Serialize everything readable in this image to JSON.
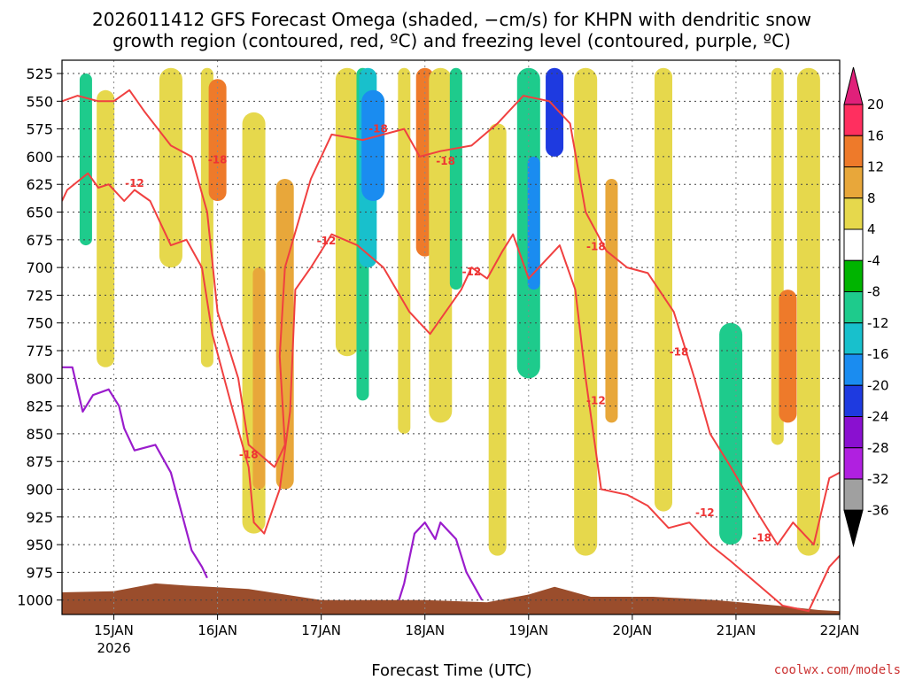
{
  "chart_data": {
    "type": "heatmap",
    "title_line1": "2026011412 GFS Forecast Omega (shaded, −cm/s) for KHPN with dendritic snow",
    "title_line2": "growth region (contoured, red, ºC) and freezing level (contoured, purple, ºC)",
    "xlabel": "Forecast Time (UTC)",
    "ylabel": "",
    "credit": "coolwx.com/models",
    "x_ticks": [
      {
        "day": 15,
        "label": "15JAN",
        "sub": "2026"
      },
      {
        "day": 16,
        "label": "16JAN",
        "sub": ""
      },
      {
        "day": 17,
        "label": "17JAN",
        "sub": ""
      },
      {
        "day": 18,
        "label": "18JAN",
        "sub": ""
      },
      {
        "day": 19,
        "label": "19JAN",
        "sub": ""
      },
      {
        "day": 20,
        "label": "20JAN",
        "sub": ""
      },
      {
        "day": 21,
        "label": "21JAN",
        "sub": ""
      },
      {
        "day": 22,
        "label": "22JAN",
        "sub": ""
      }
    ],
    "xlim": [
      14.5,
      22.0
    ],
    "y_ticks": [
      525,
      550,
      575,
      600,
      625,
      650,
      675,
      700,
      725,
      750,
      775,
      800,
      825,
      850,
      875,
      900,
      925,
      950,
      975,
      1000
    ],
    "ylim": [
      513,
      1013
    ],
    "colorbar": {
      "labels": [
        "20",
        "16",
        "12",
        "8",
        "4",
        "-4",
        "-8",
        "-12",
        "-16",
        "-20",
        "-24",
        "-28",
        "-32",
        "-36"
      ],
      "colors": [
        "#ff2f5f",
        "#ee7a2a",
        "#e8a73a",
        "#e6d84c",
        "#ffffff",
        "#00b400",
        "#1ecb8c",
        "#18c0cc",
        "#1a8cf0",
        "#1e3ae0",
        "#8a10d0",
        "#b020e0",
        "#a0a0a0"
      ],
      "top_arrow": "#e0207a",
      "bottom_arrow": "#000000"
    },
    "omega_blobs": [
      {
        "x": 14.73,
        "p0": 525,
        "p1": 680,
        "v": -8
      },
      {
        "x": 14.92,
        "p0": 540,
        "p1": 790,
        "v": 4
      },
      {
        "x": 15.55,
        "p0": 520,
        "p1": 700,
        "v": 4
      },
      {
        "x": 15.9,
        "p0": 520,
        "p1": 790,
        "v": 4
      },
      {
        "x": 16.0,
        "p0": 530,
        "p1": 640,
        "v": 12
      },
      {
        "x": 16.35,
        "p0": 560,
        "p1": 940,
        "v": 4
      },
      {
        "x": 16.4,
        "p0": 700,
        "p1": 900,
        "v": 8
      },
      {
        "x": 16.65,
        "p0": 620,
        "p1": 900,
        "v": 8
      },
      {
        "x": 17.25,
        "p0": 520,
        "p1": 780,
        "v": 4
      },
      {
        "x": 17.4,
        "p0": 520,
        "p1": 820,
        "v": -8
      },
      {
        "x": 17.45,
        "p0": 520,
        "p1": 700,
        "v": -12
      },
      {
        "x": 17.5,
        "p0": 540,
        "p1": 640,
        "v": -16
      },
      {
        "x": 17.8,
        "p0": 520,
        "p1": 850,
        "v": 4
      },
      {
        "x": 18.0,
        "p0": 520,
        "p1": 690,
        "v": 12
      },
      {
        "x": 18.15,
        "p0": 520,
        "p1": 840,
        "v": 4
      },
      {
        "x": 18.3,
        "p0": 520,
        "p1": 720,
        "v": -8
      },
      {
        "x": 18.7,
        "p0": 570,
        "p1": 960,
        "v": 4
      },
      {
        "x": 19.0,
        "p0": 520,
        "p1": 800,
        "v": -8
      },
      {
        "x": 19.05,
        "p0": 600,
        "p1": 720,
        "v": -16
      },
      {
        "x": 19.25,
        "p0": 520,
        "p1": 600,
        "v": -20
      },
      {
        "x": 19.55,
        "p0": 520,
        "p1": 960,
        "v": 4
      },
      {
        "x": 19.8,
        "p0": 620,
        "p1": 840,
        "v": 8
      },
      {
        "x": 20.3,
        "p0": 520,
        "p1": 920,
        "v": 4
      },
      {
        "x": 20.95,
        "p0": 750,
        "p1": 950,
        "v": -8
      },
      {
        "x": 21.4,
        "p0": 520,
        "p1": 860,
        "v": 4
      },
      {
        "x": 21.5,
        "p0": 720,
        "p1": 840,
        "v": 12
      },
      {
        "x": 21.7,
        "p0": 520,
        "p1": 960,
        "v": 4
      }
    ],
    "contour_minus12": [
      {
        "x": 14.5,
        "p": 640
      },
      {
        "x": 14.55,
        "p": 630
      },
      {
        "x": 14.75,
        "p": 615
      },
      {
        "x": 14.85,
        "p": 628
      },
      {
        "x": 14.95,
        "p": 625
      },
      {
        "x": 15.1,
        "p": 640
      },
      {
        "x": 15.2,
        "p": 630
      },
      {
        "x": 15.35,
        "p": 640
      },
      {
        "x": 15.55,
        "p": 680
      },
      {
        "x": 15.7,
        "p": 675
      },
      {
        "x": 15.85,
        "p": 700
      },
      {
        "x": 15.95,
        "p": 760
      },
      {
        "x": 16.15,
        "p": 830
      },
      {
        "x": 16.3,
        "p": 880
      },
      {
        "x": 16.35,
        "p": 930
      },
      {
        "x": 16.45,
        "p": 940
      },
      {
        "x": 16.6,
        "p": 900
      },
      {
        "x": 16.7,
        "p": 830
      },
      {
        "x": 16.75,
        "p": 720
      },
      {
        "x": 16.9,
        "p": 700
      },
      {
        "x": 17.1,
        "p": 670
      },
      {
        "x": 17.35,
        "p": 680
      },
      {
        "x": 17.6,
        "p": 700
      },
      {
        "x": 17.85,
        "p": 740
      },
      {
        "x": 18.05,
        "p": 760
      },
      {
        "x": 18.2,
        "p": 740
      },
      {
        "x": 18.35,
        "p": 720
      },
      {
        "x": 18.45,
        "p": 700
      },
      {
        "x": 18.6,
        "p": 710
      },
      {
        "x": 18.75,
        "p": 685
      },
      {
        "x": 18.85,
        "p": 670
      },
      {
        "x": 19.0,
        "p": 710
      },
      {
        "x": 19.3,
        "p": 680
      },
      {
        "x": 19.45,
        "p": 720
      },
      {
        "x": 19.55,
        "p": 800
      },
      {
        "x": 19.7,
        "p": 900
      },
      {
        "x": 19.95,
        "p": 905
      },
      {
        "x": 20.15,
        "p": 915
      },
      {
        "x": 20.35,
        "p": 935
      },
      {
        "x": 20.55,
        "p": 930
      },
      {
        "x": 20.75,
        "p": 950
      },
      {
        "x": 20.95,
        "p": 965
      },
      {
        "x": 21.2,
        "p": 985
      },
      {
        "x": 21.45,
        "p": 1005
      },
      {
        "x": 21.7,
        "p": 1010
      },
      {
        "x": 21.8,
        "p": 990
      },
      {
        "x": 21.9,
        "p": 970
      },
      {
        "x": 22.0,
        "p": 960
      }
    ],
    "contour_minus18": [
      {
        "x": 14.5,
        "p": 550
      },
      {
        "x": 14.65,
        "p": 545
      },
      {
        "x": 14.85,
        "p": 550
      },
      {
        "x": 15.0,
        "p": 550
      },
      {
        "x": 15.15,
        "p": 540
      },
      {
        "x": 15.3,
        "p": 560
      },
      {
        "x": 15.55,
        "p": 590
      },
      {
        "x": 15.75,
        "p": 600
      },
      {
        "x": 15.9,
        "p": 650
      },
      {
        "x": 16.0,
        "p": 740
      },
      {
        "x": 16.2,
        "p": 800
      },
      {
        "x": 16.3,
        "p": 860
      },
      {
        "x": 16.55,
        "p": 880
      },
      {
        "x": 16.65,
        "p": 860
      },
      {
        "x": 16.6,
        "p": 780
      },
      {
        "x": 16.65,
        "p": 700
      },
      {
        "x": 16.9,
        "p": 620
      },
      {
        "x": 17.1,
        "p": 580
      },
      {
        "x": 17.4,
        "p": 585
      },
      {
        "x": 17.6,
        "p": 580
      },
      {
        "x": 17.8,
        "p": 575
      },
      {
        "x": 17.95,
        "p": 600
      },
      {
        "x": 18.15,
        "p": 595
      },
      {
        "x": 18.45,
        "p": 590
      },
      {
        "x": 18.7,
        "p": 570
      },
      {
        "x": 18.95,
        "p": 545
      },
      {
        "x": 19.2,
        "p": 550
      },
      {
        "x": 19.4,
        "p": 570
      },
      {
        "x": 19.55,
        "p": 650
      },
      {
        "x": 19.75,
        "p": 685
      },
      {
        "x": 19.95,
        "p": 700
      },
      {
        "x": 20.15,
        "p": 705
      },
      {
        "x": 20.4,
        "p": 740
      },
      {
        "x": 20.6,
        "p": 800
      },
      {
        "x": 20.75,
        "p": 850
      },
      {
        "x": 20.95,
        "p": 880
      },
      {
        "x": 21.2,
        "p": 920
      },
      {
        "x": 21.4,
        "p": 950
      },
      {
        "x": 21.55,
        "p": 930
      },
      {
        "x": 21.75,
        "p": 950
      },
      {
        "x": 21.9,
        "p": 890
      },
      {
        "x": 22.0,
        "p": 885
      }
    ],
    "contour_freezing": [
      {
        "x": 14.5,
        "p": 790
      },
      {
        "x": 14.6,
        "p": 790
      },
      {
        "x": 14.7,
        "p": 830
      },
      {
        "x": 14.8,
        "p": 815
      },
      {
        "x": 14.95,
        "p": 810
      },
      {
        "x": 15.05,
        "p": 825
      },
      {
        "x": 15.1,
        "p": 845
      },
      {
        "x": 15.2,
        "p": 865
      },
      {
        "x": 15.4,
        "p": 860
      },
      {
        "x": 15.55,
        "p": 885
      },
      {
        "x": 15.65,
        "p": 920
      },
      {
        "x": 15.75,
        "p": 955
      },
      {
        "x": 15.85,
        "p": 970
      },
      {
        "x": 15.9,
        "p": 980
      }
    ],
    "contour_freezing2": [
      {
        "x": 17.75,
        "p": 1000
      },
      {
        "x": 17.8,
        "p": 985
      },
      {
        "x": 17.9,
        "p": 940
      },
      {
        "x": 18.0,
        "p": 930
      },
      {
        "x": 18.1,
        "p": 945
      },
      {
        "x": 18.15,
        "p": 930
      },
      {
        "x": 18.3,
        "p": 945
      },
      {
        "x": 18.4,
        "p": 975
      },
      {
        "x": 18.55,
        "p": 1000
      }
    ],
    "contour_labels": [
      {
        "x": 16.0,
        "p": 603,
        "text": "-18"
      },
      {
        "x": 15.2,
        "p": 624,
        "text": "-12"
      },
      {
        "x": 17.05,
        "p": 676,
        "text": "-12"
      },
      {
        "x": 17.55,
        "p": 575,
        "text": "-18"
      },
      {
        "x": 18.2,
        "p": 604,
        "text": "-18"
      },
      {
        "x": 18.45,
        "p": 704,
        "text": "-12"
      },
      {
        "x": 19.65,
        "p": 681,
        "text": "-18"
      },
      {
        "x": 20.45,
        "p": 776,
        "text": "-18"
      },
      {
        "x": 16.3,
        "p": 869,
        "text": "-18"
      },
      {
        "x": 19.65,
        "p": 820,
        "text": "-12"
      },
      {
        "x": 20.7,
        "p": 921,
        "text": "-12"
      },
      {
        "x": 21.25,
        "p": 944,
        "text": "-18"
      }
    ],
    "terrain": [
      {
        "x": 14.5,
        "p": 993
      },
      {
        "x": 15.0,
        "p": 992
      },
      {
        "x": 15.4,
        "p": 985
      },
      {
        "x": 15.7,
        "p": 987
      },
      {
        "x": 16.3,
        "p": 990
      },
      {
        "x": 17.0,
        "p": 1000
      },
      {
        "x": 17.5,
        "p": 1000
      },
      {
        "x": 18.0,
        "p": 1000
      },
      {
        "x": 18.6,
        "p": 1002
      },
      {
        "x": 19.0,
        "p": 995
      },
      {
        "x": 19.25,
        "p": 988
      },
      {
        "x": 19.6,
        "p": 997
      },
      {
        "x": 20.2,
        "p": 997
      },
      {
        "x": 20.8,
        "p": 1000
      },
      {
        "x": 21.4,
        "p": 1005
      },
      {
        "x": 21.8,
        "p": 1009
      },
      {
        "x": 22.0,
        "p": 1010
      }
    ],
    "colors": {
      "dsg_contour": "#f04040",
      "freezing_contour": "#9a1ccc",
      "terrain": "#9a4d2c",
      "grid": "#444444"
    }
  }
}
